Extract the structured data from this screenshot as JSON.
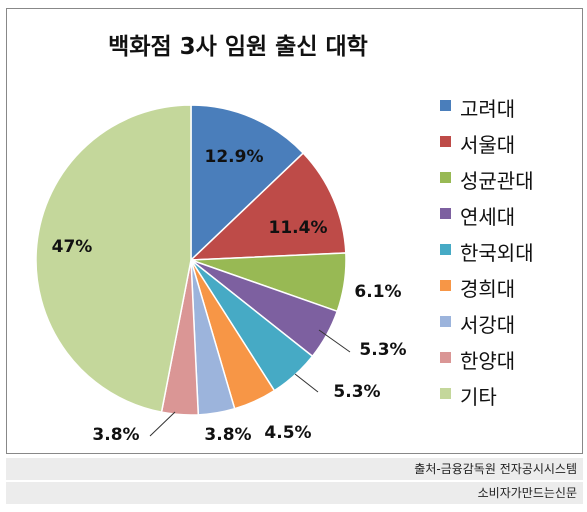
{
  "chart_data": {
    "type": "pie",
    "title": "백화점 3사 임원 출신 대학",
    "categories": [
      "고려대",
      "서울대",
      "성균관대",
      "연세대",
      "한국외대",
      "경희대",
      "서강대",
      "한양대",
      "기타"
    ],
    "values": [
      12.9,
      11.4,
      6.1,
      5.3,
      5.3,
      4.5,
      3.8,
      3.8,
      47
    ],
    "labels": [
      "12.9%",
      "11.4%",
      "6.1%",
      "5.3%",
      "5.3%",
      "4.5%",
      "3.8%",
      "3.8%",
      "47%"
    ],
    "colors": [
      "#4a7ebb",
      "#be4b48",
      "#98b954",
      "#7d60a0",
      "#46aac5",
      "#f79646",
      "#9cb4dc",
      "#da9695",
      "#c4d79b"
    ],
    "legend_position": "right"
  },
  "footer": {
    "source": "출처-금융감독원 전자공시시스템",
    "publisher": "소비자가만드는신문"
  }
}
